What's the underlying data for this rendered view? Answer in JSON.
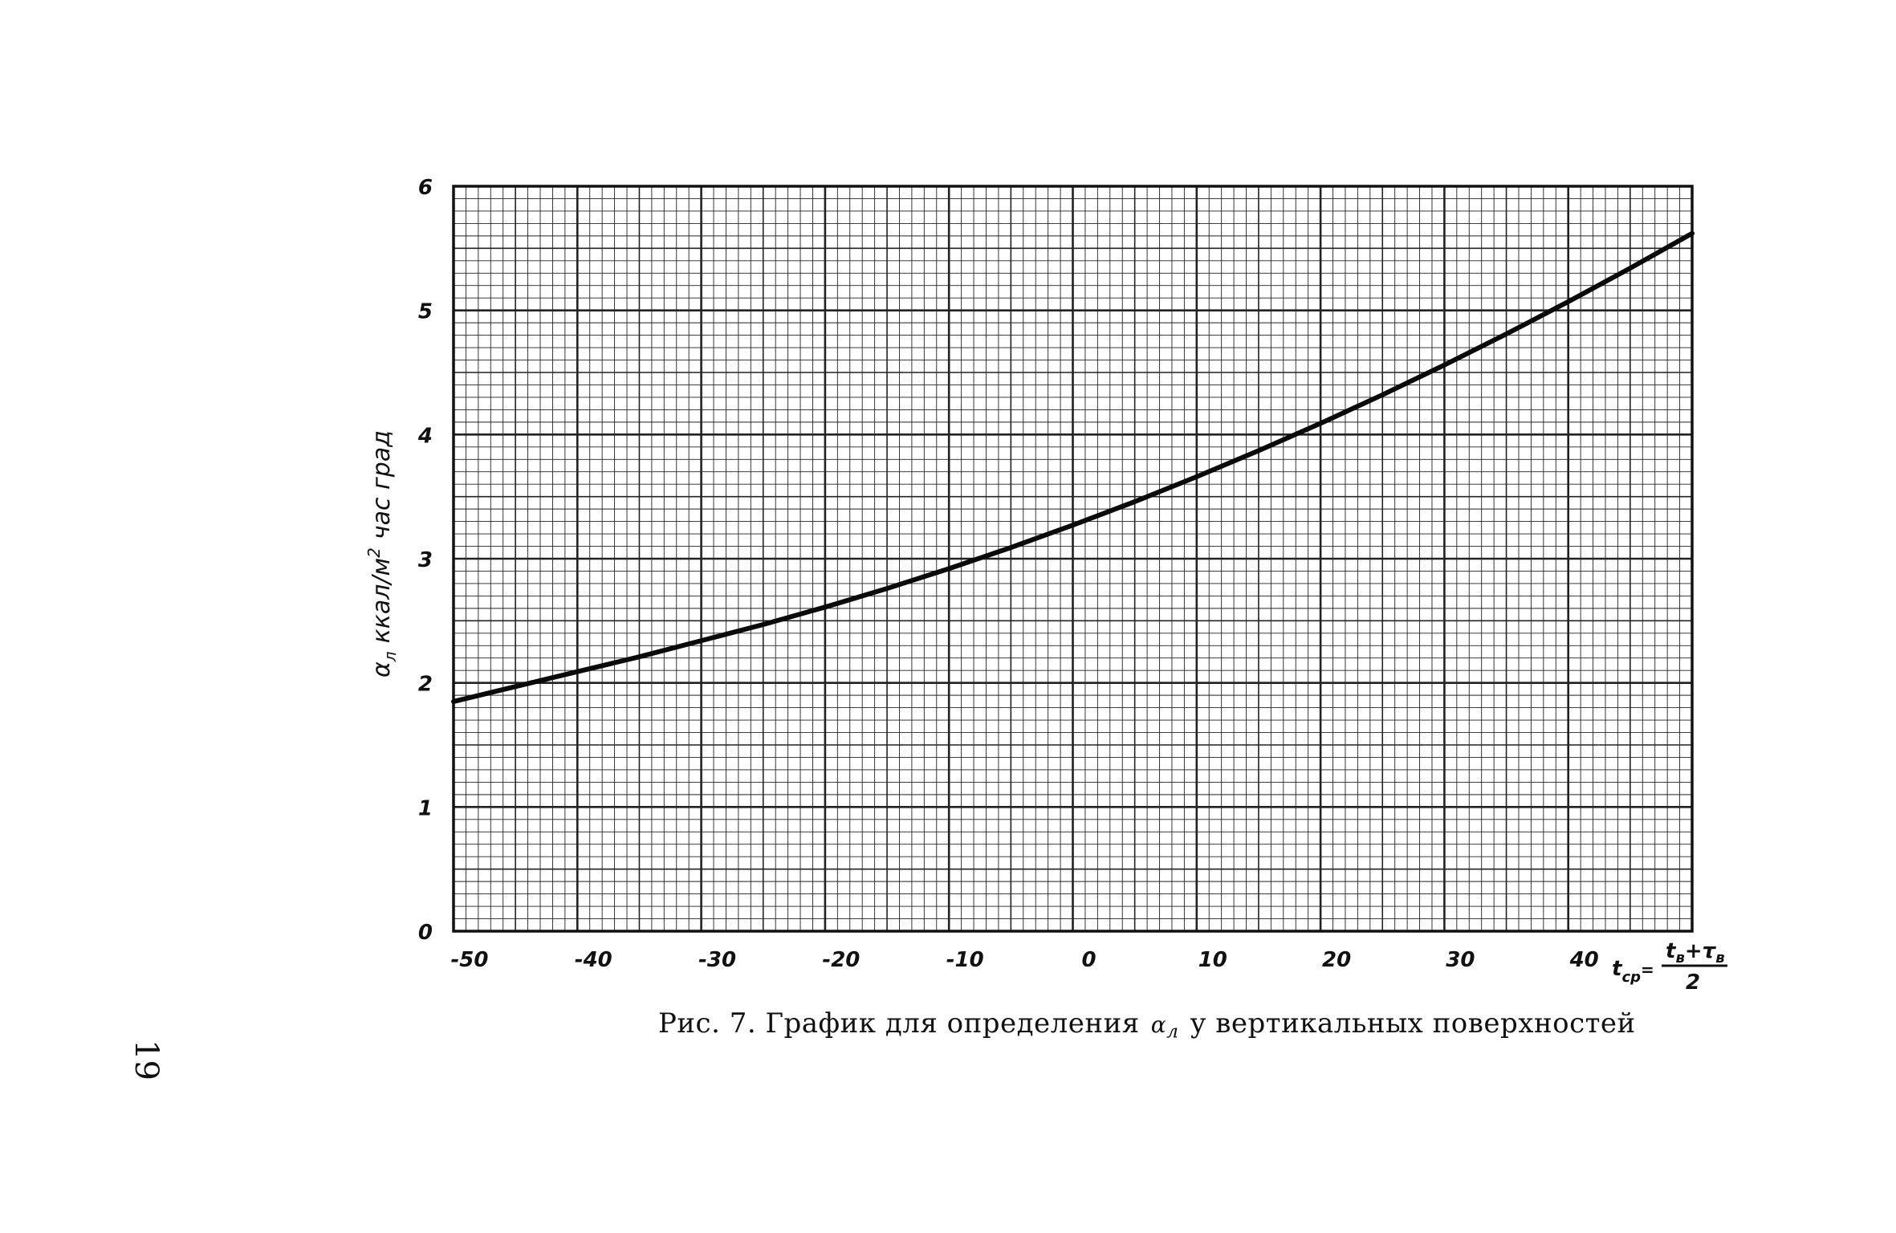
{
  "page_number": "19",
  "caption": {
    "prefix": "Рис. 7. График для определения",
    "symbol": "α",
    "symbol_sub": "л",
    "suffix": "у вертикальных поверхностей"
  },
  "chart_data": {
    "type": "line",
    "title": "",
    "ylabel": {
      "symbol": "α",
      "sub": "л",
      "text": "ккал/м",
      "sup": "2",
      "rest": "час град"
    },
    "xlabel": {
      "t": "t",
      "sub": "ср",
      "eq": "=",
      "numerator": "t",
      "num_sub1": "в",
      "plus": "+",
      "num_t2": "τ",
      "num_sub2": "в",
      "denominator": "2"
    },
    "xlim": [
      -50,
      50
    ],
    "ylim": [
      0,
      6
    ],
    "x_ticks": [
      "-50",
      "-40",
      "-30",
      "-20",
      "-10",
      "0",
      "10",
      "20",
      "30",
      "40"
    ],
    "y_ticks": [
      "0",
      "1",
      "2",
      "3",
      "4",
      "5",
      "6"
    ],
    "grid": true,
    "series": [
      {
        "x": [
          -50,
          -45,
          -40,
          -35,
          -30,
          -25,
          -20,
          -15,
          -10,
          -5,
          0,
          5,
          10,
          15,
          20,
          25,
          30,
          35,
          40,
          45,
          50
        ],
        "y": [
          1.85,
          1.97,
          2.09,
          2.21,
          2.34,
          2.47,
          2.61,
          2.76,
          2.92,
          3.09,
          3.27,
          3.46,
          3.66,
          3.87,
          4.09,
          4.32,
          4.56,
          4.81,
          5.07,
          5.34,
          5.62
        ]
      }
    ]
  }
}
